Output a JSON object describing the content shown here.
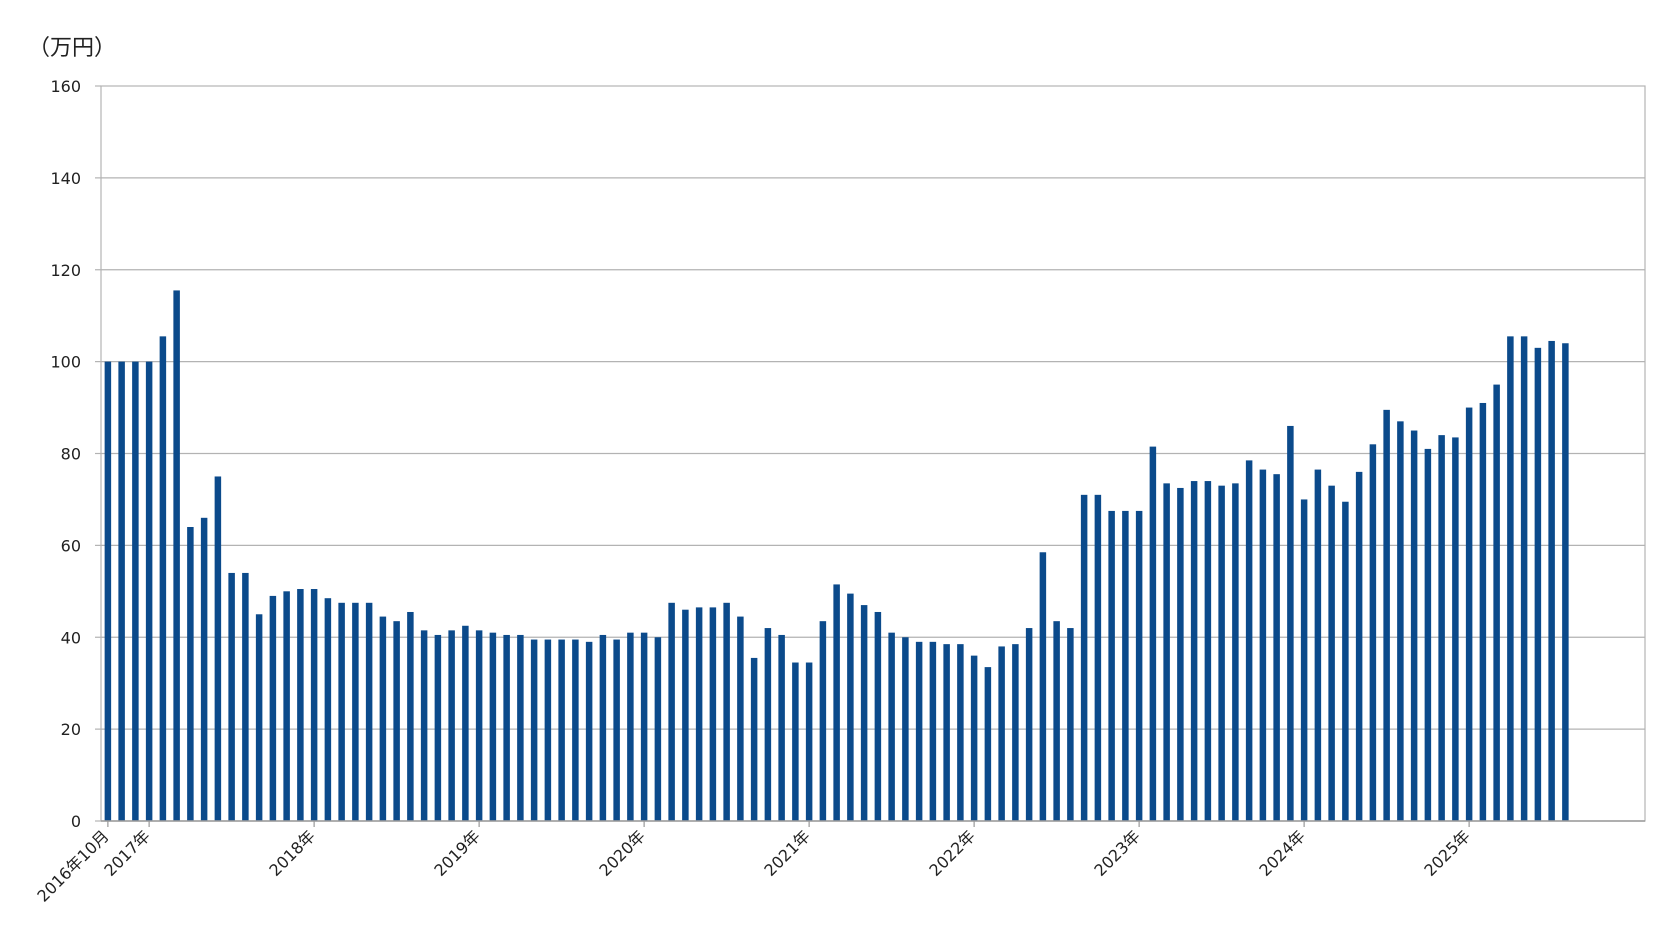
{
  "chart_data": {
    "type": "bar",
    "unit_label": "（万円）",
    "ylim": [
      0,
      160
    ],
    "y_ticks": [
      0,
      20,
      40,
      60,
      80,
      100,
      120,
      140,
      160
    ],
    "grid": true,
    "bar_color": "#0b4a8b",
    "x_tick_labels": [
      {
        "index": 0,
        "label": "2016年10月"
      },
      {
        "index": 3,
        "label": "2017年"
      },
      {
        "index": 15,
        "label": "2018年"
      },
      {
        "index": 27,
        "label": "2019年"
      },
      {
        "index": 39,
        "label": "2020年"
      },
      {
        "index": 51,
        "label": "2021年"
      },
      {
        "index": 63,
        "label": "2022年"
      },
      {
        "index": 75,
        "label": "2023年"
      },
      {
        "index": 87,
        "label": "2024年"
      },
      {
        "index": 99,
        "label": "2025年"
      }
    ],
    "values": [
      100,
      100,
      100,
      100,
      105.5,
      115.5,
      64,
      66,
      75,
      54,
      54,
      45,
      49,
      50,
      50.5,
      50.5,
      48.5,
      47.5,
      47.5,
      47.5,
      44.5,
      43.5,
      45.5,
      41.5,
      40.5,
      41.5,
      42.5,
      41.5,
      41,
      40.5,
      40.5,
      39.5,
      39.5,
      39.5,
      39.5,
      39,
      40.5,
      39.5,
      41,
      41,
      40,
      47.5,
      46,
      46.5,
      46.5,
      47.5,
      44.5,
      35.5,
      42,
      40.5,
      34.5,
      34.5,
      43.5,
      51.5,
      49.5,
      47,
      45.5,
      41,
      40,
      39,
      39,
      38.5,
      38.5,
      36,
      33.5,
      38,
      38.5,
      42,
      58.5,
      43.5,
      42,
      71,
      71,
      67.5,
      67.5,
      67.5,
      81.5,
      73.5,
      72.5,
      74,
      74,
      73,
      73.5,
      78.5,
      76.5,
      75.5,
      86,
      70,
      76.5,
      73,
      69.5,
      76,
      82,
      89.5,
      87,
      85,
      81,
      84,
      83.5,
      90,
      91,
      95,
      105.5,
      105.5,
      103,
      104.5,
      104
    ]
  }
}
